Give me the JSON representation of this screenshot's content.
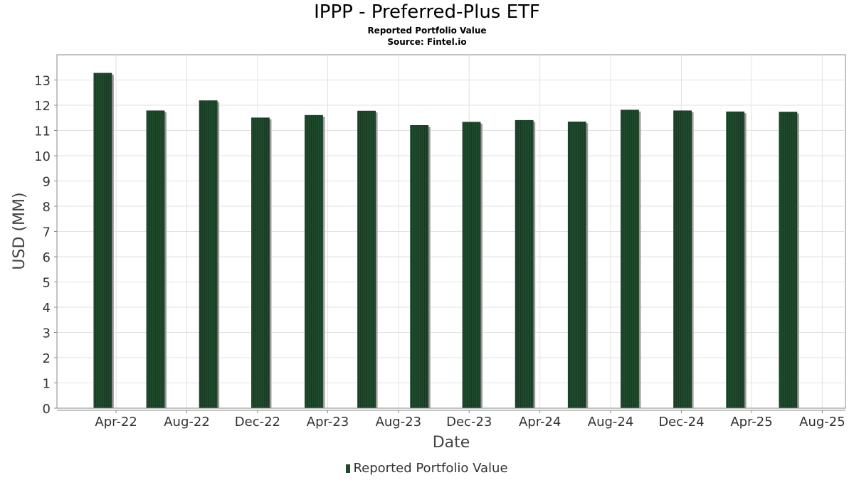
{
  "chart_data": {
    "type": "bar",
    "title": "IPPP - Preferred-Plus ETF",
    "subtitles": [
      "Reported Portfolio Value",
      "Source: Fintel.io"
    ],
    "xlabel": "Date",
    "ylabel": "USD (MM)",
    "ylim": [
      0,
      14
    ],
    "yticks": [
      0,
      1,
      2,
      3,
      4,
      5,
      6,
      7,
      8,
      9,
      10,
      11,
      12,
      13
    ],
    "xlim": [
      "2021-12-20",
      "2025-09-10"
    ],
    "xticks": [
      {
        "date": "2022-04-01",
        "label": "Apr-22"
      },
      {
        "date": "2022-08-01",
        "label": "Aug-22"
      },
      {
        "date": "2022-12-01",
        "label": "Dec-22"
      },
      {
        "date": "2023-04-01",
        "label": "Apr-23"
      },
      {
        "date": "2023-08-01",
        "label": "Aug-23"
      },
      {
        "date": "2023-12-01",
        "label": "Dec-23"
      },
      {
        "date": "2024-04-01",
        "label": "Apr-24"
      },
      {
        "date": "2024-08-01",
        "label": "Aug-24"
      },
      {
        "date": "2024-12-01",
        "label": "Dec-24"
      },
      {
        "date": "2025-04-01",
        "label": "Apr-25"
      },
      {
        "date": "2025-08-01",
        "label": "Aug-25"
      }
    ],
    "grid": true,
    "legend": {
      "position": "bottom",
      "entries": [
        "Reported Portfolio Value"
      ]
    },
    "series": [
      {
        "name": "Reported Portfolio Value",
        "color": "#1f4a2c",
        "points": [
          {
            "x": "2022-03-09",
            "y": 13.27
          },
          {
            "x": "2022-06-08",
            "y": 11.78
          },
          {
            "x": "2022-09-07",
            "y": 12.18
          },
          {
            "x": "2022-12-06",
            "y": 11.5
          },
          {
            "x": "2023-03-08",
            "y": 11.6
          },
          {
            "x": "2023-06-07",
            "y": 11.77
          },
          {
            "x": "2023-09-06",
            "y": 11.2
          },
          {
            "x": "2023-12-05",
            "y": 11.33
          },
          {
            "x": "2024-03-05",
            "y": 11.4
          },
          {
            "x": "2024-06-04",
            "y": 11.34
          },
          {
            "x": "2024-09-03",
            "y": 11.81
          },
          {
            "x": "2024-12-03",
            "y": 11.78
          },
          {
            "x": "2025-03-04",
            "y": 11.74
          },
          {
            "x": "2025-06-03",
            "y": 11.73
          }
        ]
      }
    ]
  }
}
